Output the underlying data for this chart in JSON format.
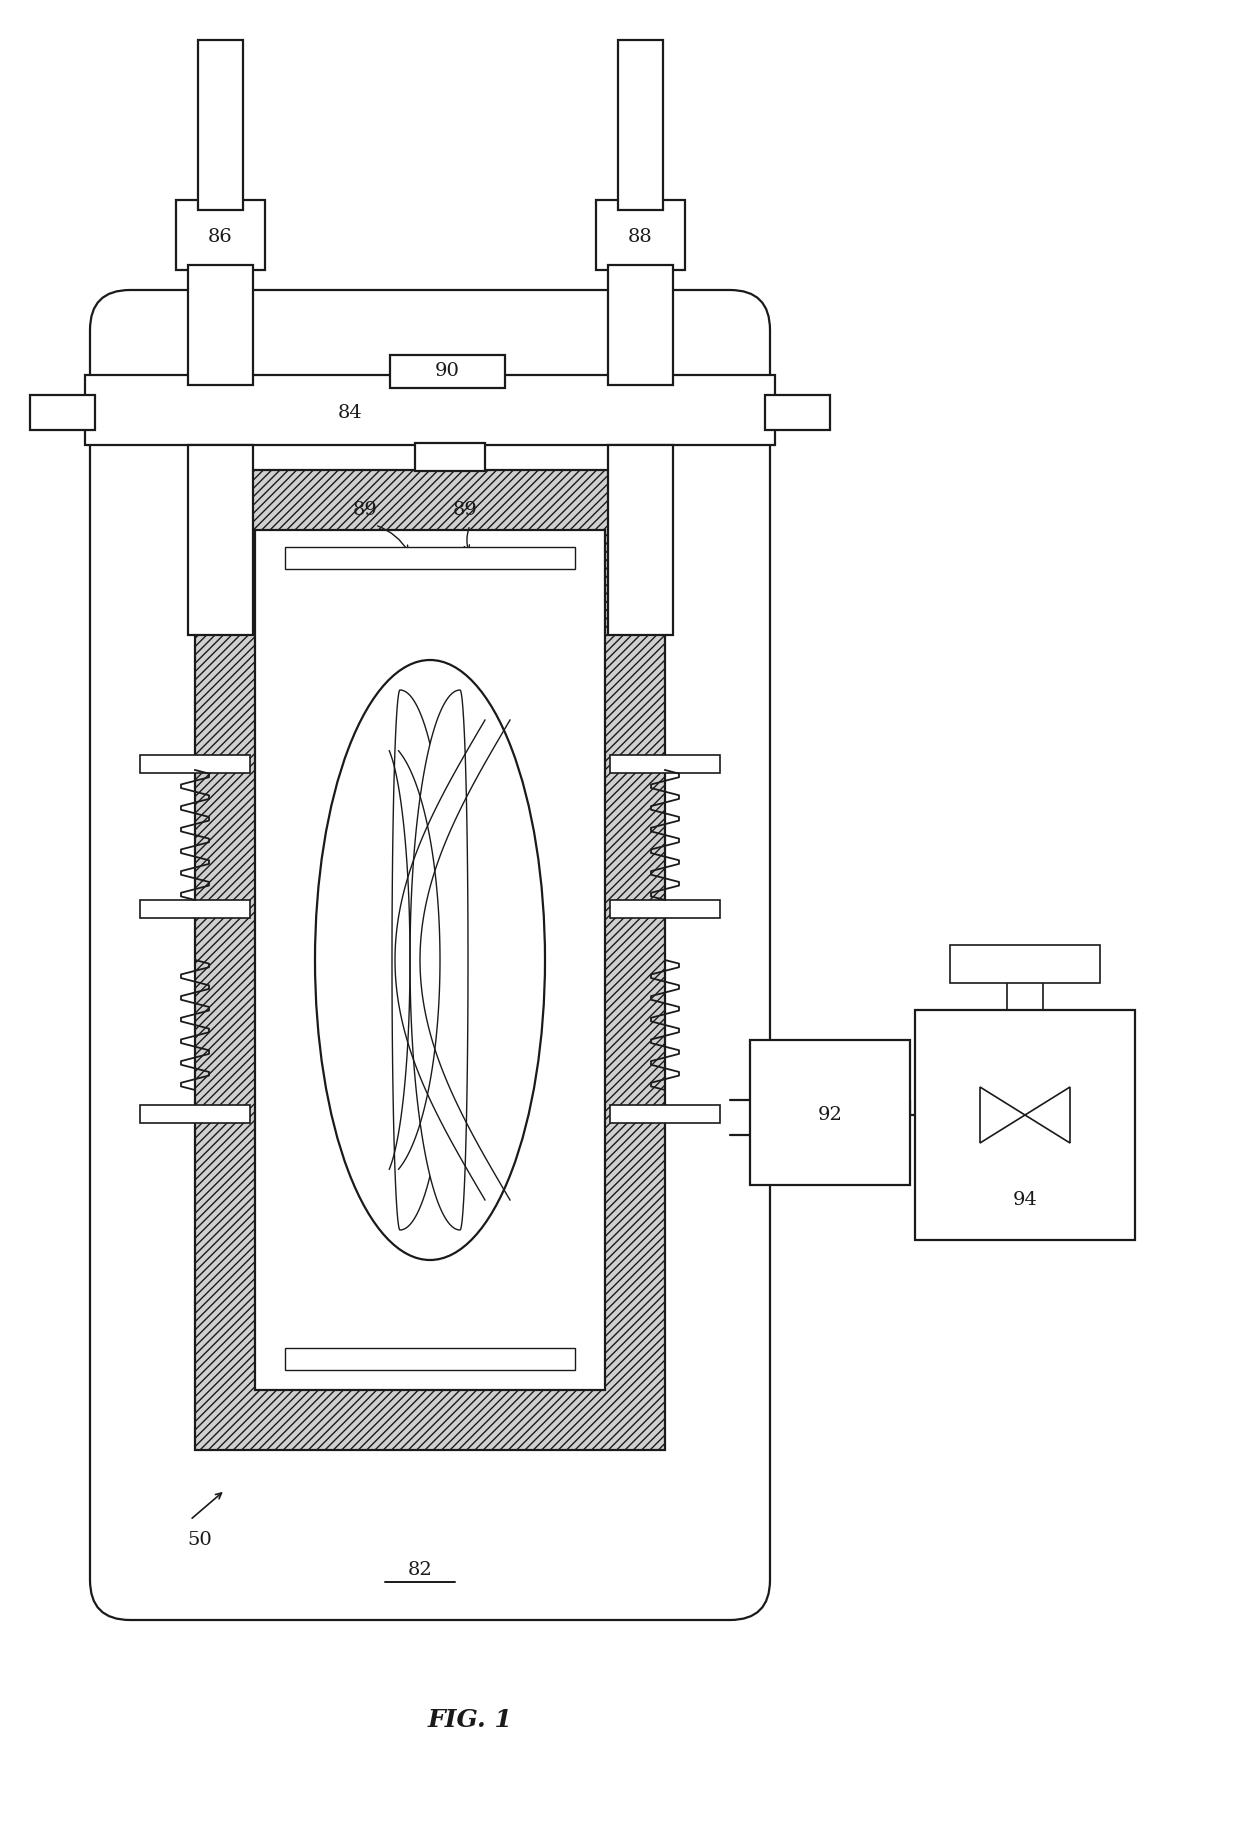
{
  "bg_color": "#ffffff",
  "line_color": "#1a1a1a",
  "fig_caption": "FIG. 1",
  "label_86": "86",
  "label_88": "88",
  "label_84": "84",
  "label_89a": "89",
  "label_89b": "89",
  "label_90": "90",
  "label_82": "82",
  "label_50": "50",
  "label_92": "92",
  "label_94": "94",
  "font_size": 14,
  "lw_main": 1.6,
  "lw_thin": 1.0,
  "hatch_density": "////"
}
